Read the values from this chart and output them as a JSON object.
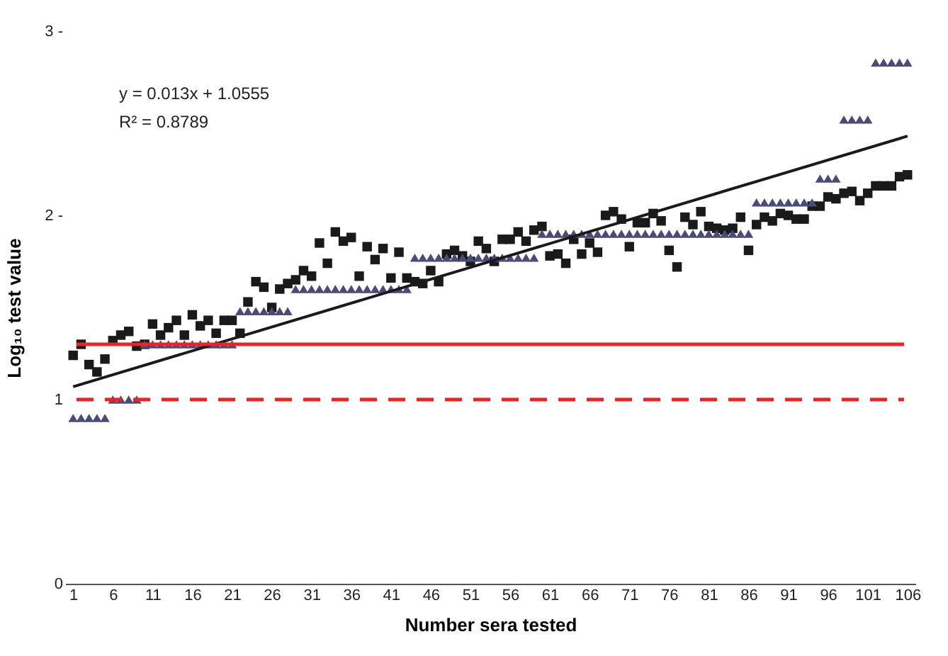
{
  "chart_data": {
    "type": "scatter",
    "xlabel": "Number sera tested",
    "ylabel": "Log₁₀ test value",
    "x": [
      1,
      2,
      3,
      4,
      5,
      6,
      7,
      8,
      9,
      10,
      11,
      12,
      13,
      14,
      15,
      16,
      17,
      18,
      19,
      20,
      21,
      22,
      23,
      24,
      25,
      26,
      27,
      28,
      29,
      30,
      31,
      32,
      33,
      34,
      35,
      36,
      37,
      38,
      39,
      40,
      41,
      42,
      43,
      44,
      45,
      46,
      47,
      48,
      49,
      50,
      51,
      52,
      53,
      54,
      55,
      56,
      57,
      58,
      59,
      60,
      61,
      62,
      63,
      64,
      65,
      66,
      67,
      68,
      69,
      70,
      71,
      72,
      73,
      74,
      75,
      76,
      77,
      78,
      79,
      80,
      81,
      82,
      83,
      84,
      85,
      86,
      87,
      88,
      89,
      90,
      91,
      92,
      93,
      94,
      95,
      96,
      97,
      98,
      99,
      100,
      101,
      102,
      103,
      104,
      105,
      106
    ],
    "xlim": [
      0,
      107
    ],
    "xticks": [
      1,
      6,
      11,
      16,
      21,
      26,
      31,
      36,
      41,
      46,
      51,
      56,
      61,
      66,
      71,
      76,
      81,
      86,
      91,
      96,
      101,
      106
    ],
    "ylim": [
      0,
      3
    ],
    "yticks": [
      {
        "value": 0,
        "label": "0"
      },
      {
        "value": 1,
        "label": "1"
      },
      {
        "value": 2,
        "label": "2 -"
      },
      {
        "value": 3,
        "label": "3 -"
      }
    ],
    "grid": false,
    "legend": false,
    "series": [
      {
        "marker": "square",
        "color": "#1a1a1a",
        "values": [
          1.24,
          1.3,
          1.19,
          1.15,
          1.22,
          1.32,
          1.35,
          1.37,
          1.29,
          1.3,
          1.41,
          1.35,
          1.39,
          1.43,
          1.35,
          1.46,
          1.4,
          1.43,
          1.36,
          1.43,
          1.43,
          1.36,
          1.53,
          1.64,
          1.61,
          1.5,
          1.6,
          1.63,
          1.65,
          1.7,
          1.67,
          1.85,
          1.74,
          1.91,
          1.86,
          1.88,
          1.67,
          1.83,
          1.76,
          1.82,
          1.66,
          1.8,
          1.66,
          1.64,
          1.63,
          1.7,
          1.64,
          1.79,
          1.81,
          1.78,
          1.75,
          1.86,
          1.82,
          1.75,
          1.87,
          1.87,
          1.91,
          1.86,
          1.92,
          1.94,
          1.78,
          1.79,
          1.74,
          1.87,
          1.79,
          1.85,
          1.8,
          2.0,
          2.02,
          1.98,
          1.83,
          1.96,
          1.96,
          2.01,
          1.97,
          1.81,
          1.72,
          1.99,
          1.95,
          2.02,
          1.94,
          1.93,
          1.92,
          1.93,
          1.99,
          1.81,
          1.95,
          1.99,
          1.97,
          2.01,
          2.0,
          1.98,
          1.98,
          2.05,
          2.05,
          2.1,
          2.09,
          2.12,
          2.13,
          2.08,
          2.12,
          2.16,
          2.16,
          2.16,
          2.21,
          2.22
        ]
      },
      {
        "marker": "triangle",
        "color": "#4b4a78",
        "values": [
          0.9,
          0.9,
          0.9,
          0.9,
          0.9,
          1.0,
          1.0,
          1.0,
          1.0,
          1.3,
          1.3,
          1.3,
          1.3,
          1.3,
          1.3,
          1.3,
          1.3,
          1.3,
          1.3,
          1.3,
          1.3,
          1.48,
          1.48,
          1.48,
          1.48,
          1.48,
          1.48,
          1.48,
          1.6,
          1.6,
          1.6,
          1.6,
          1.6,
          1.6,
          1.6,
          1.6,
          1.6,
          1.6,
          1.6,
          1.6,
          1.6,
          1.6,
          1.6,
          1.77,
          1.77,
          1.77,
          1.77,
          1.77,
          1.77,
          1.77,
          1.77,
          1.77,
          1.77,
          1.77,
          1.77,
          1.77,
          1.77,
          1.77,
          1.77,
          1.9,
          1.9,
          1.9,
          1.9,
          1.9,
          1.9,
          1.9,
          1.9,
          1.9,
          1.9,
          1.9,
          1.9,
          1.9,
          1.9,
          1.9,
          1.9,
          1.9,
          1.9,
          1.9,
          1.9,
          1.9,
          1.9,
          1.9,
          1.9,
          1.9,
          1.9,
          1.9,
          2.07,
          2.07,
          2.07,
          2.07,
          2.07,
          2.07,
          2.07,
          2.07,
          2.2,
          2.2,
          2.2,
          2.52,
          2.52,
          2.52,
          2.52,
          2.83,
          2.83,
          2.83,
          2.83,
          2.83
        ]
      },
      {
        "type": "line",
        "marker": "none",
        "line_style": "solid",
        "color": "#1a1a1a",
        "x": [
          1,
          106
        ],
        "values": [
          1.07,
          2.43
        ]
      }
    ],
    "ref_lines": [
      {
        "axis": "y",
        "value": 1.3,
        "color": "#ee2222",
        "line_style": "solid"
      },
      {
        "axis": "y",
        "value": 1.0,
        "color": "#ee2222",
        "line_style": "dashed"
      }
    ],
    "annotations": [
      "y = 0.013x + 1.0555",
      "R² = 0.8789"
    ]
  }
}
